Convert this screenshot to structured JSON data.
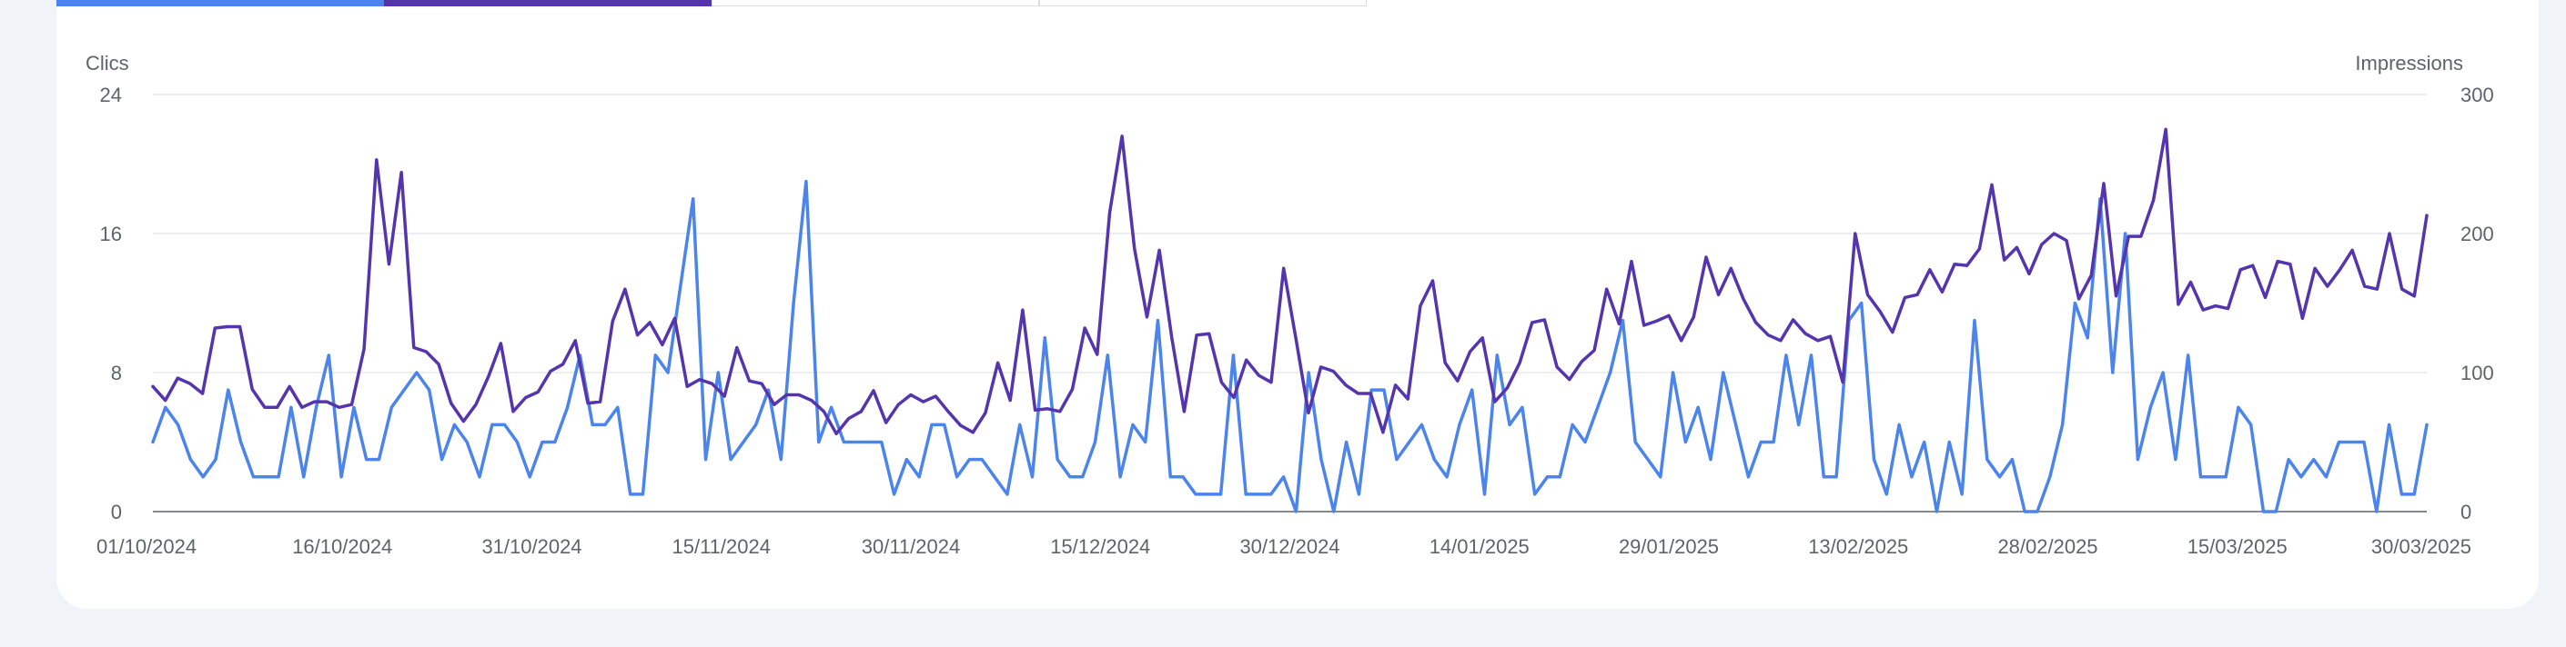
{
  "colors": {
    "clicks": "#4a84ec",
    "impressions": "#5535ad",
    "grid": "#e6e8eb",
    "axis": "#5f6368"
  },
  "chart_data": {
    "type": "line",
    "y_left_label": "Clics",
    "y_right_label": "Impressions",
    "y_left_ticks": [
      "24",
      "16",
      "8",
      "0"
    ],
    "y_right_ticks": [
      "300",
      "200",
      "100",
      "0"
    ],
    "y_left_lim": [
      0,
      24
    ],
    "y_right_lim": [
      0,
      300
    ],
    "x_tick_labels": [
      "01/10/2024",
      "16/10/2024",
      "31/10/2024",
      "15/11/2024",
      "30/11/2024",
      "15/12/2024",
      "30/12/2024",
      "14/01/2025",
      "29/01/2025",
      "13/02/2025",
      "28/02/2025",
      "15/03/2025",
      "30/03/2025"
    ],
    "x_start": "01/10/2024",
    "x_end": "30/03/2025",
    "grid": true,
    "series": [
      {
        "name": "Clics",
        "axis": "left",
        "color": "#4a84ec",
        "values": [
          4,
          6,
          5,
          3,
          2,
          3,
          7,
          4,
          2,
          2,
          2,
          6,
          2,
          6,
          9,
          2,
          6,
          3,
          3,
          6,
          7,
          8,
          7,
          3,
          5,
          4,
          2,
          5,
          5,
          4,
          2,
          4,
          4,
          6,
          9,
          5,
          5,
          6,
          1,
          1,
          9,
          8,
          13,
          18,
          3,
          8,
          3,
          4,
          5,
          7,
          3,
          12,
          19,
          4,
          6,
          4,
          4,
          4,
          4,
          1,
          3,
          2,
          5,
          5,
          2,
          3,
          3,
          2,
          1,
          5,
          2,
          10,
          3,
          2,
          2,
          4,
          9,
          2,
          5,
          4,
          11,
          2,
          2,
          1,
          1,
          1,
          9,
          1,
          1,
          1,
          2,
          0,
          8,
          3,
          0,
          4,
          1,
          7,
          7,
          3,
          4,
          5,
          3,
          2,
          5,
          7,
          1,
          9,
          5,
          6,
          1,
          2,
          2,
          5,
          4,
          6,
          8,
          11,
          4,
          3,
          2,
          8,
          4,
          6,
          3,
          8,
          5,
          2,
          4,
          4,
          9,
          5,
          9,
          2,
          2,
          11,
          12,
          3,
          1,
          5,
          2,
          4,
          0,
          4,
          1,
          11,
          3,
          2,
          3,
          0,
          0,
          2,
          5,
          12,
          10,
          18,
          8,
          16,
          3,
          6,
          8,
          3,
          9,
          2,
          2,
          2,
          6,
          5,
          0,
          0,
          3,
          2,
          3,
          2,
          4,
          4,
          4,
          0,
          5,
          1,
          1,
          5
        ]
      },
      {
        "name": "Impressions",
        "axis": "right",
        "color": "#5535ad",
        "values": [
          90,
          80,
          96,
          92,
          85,
          132,
          133,
          133,
          88,
          75,
          75,
          90,
          75,
          79,
          79,
          75,
          77,
          117,
          253,
          178,
          244,
          118,
          115,
          106,
          78,
          65,
          77,
          97,
          121,
          72,
          82,
          86,
          101,
          106,
          123,
          78,
          79,
          137,
          160,
          127,
          136,
          120,
          139,
          90,
          95,
          92,
          83,
          118,
          94,
          92,
          77,
          84,
          84,
          80,
          72,
          56,
          67,
          72,
          87,
          64,
          77,
          84,
          79,
          83,
          72,
          62,
          57,
          71,
          107,
          80,
          145,
          73,
          74,
          72,
          88,
          132,
          113,
          215,
          270,
          189,
          140,
          188,
          125,
          72,
          127,
          128,
          93,
          82,
          109,
          98,
          93,
          175,
          124,
          71,
          104,
          101,
          91,
          85,
          85,
          57,
          91,
          81,
          148,
          166,
          107,
          94,
          115,
          125,
          79,
          89,
          107,
          136,
          138,
          104,
          95,
          108,
          116,
          160,
          135,
          180,
          134,
          137,
          141,
          123,
          140,
          183,
          156,
          175,
          153,
          136,
          127,
          123,
          138,
          128,
          123,
          126,
          93,
          200,
          156,
          144,
          129,
          154,
          156,
          174,
          158,
          178,
          177,
          189,
          235,
          181,
          190,
          171,
          192,
          200,
          195,
          153,
          170,
          236,
          155,
          198,
          198,
          224,
          275,
          149,
          165,
          145,
          148,
          146,
          174,
          177,
          154,
          180,
          178,
          139,
          175,
          162,
          174,
          188,
          162,
          160,
          200,
          160,
          155,
          213
        ]
      }
    ]
  }
}
